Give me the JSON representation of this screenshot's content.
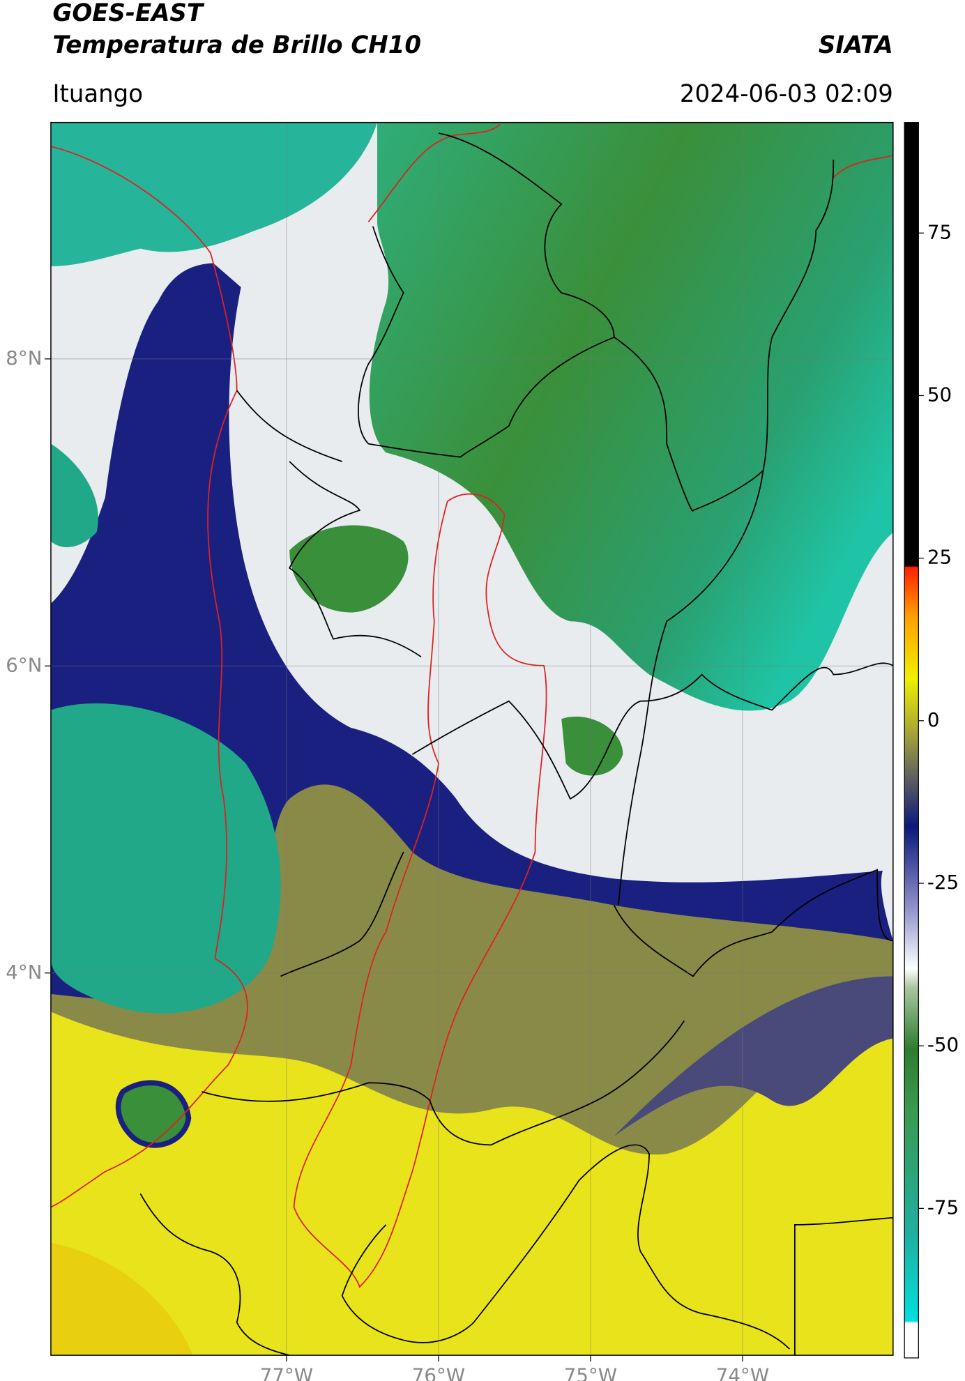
{
  "chart_data": {
    "type": "map",
    "title": "GOES-EAST",
    "subtitle": "Temperatura de Brillo CH10",
    "source": "SIATA",
    "region": "Ituango",
    "datetime": "2024-06-03 02:09",
    "xlim": [
      -78.55,
      -73.01
    ],
    "ylim": [
      1.51,
      9.54
    ],
    "xticks": [
      {
        "value": -77,
        "label": "77°W"
      },
      {
        "value": -76,
        "label": "76°W"
      },
      {
        "value": -75,
        "label": "75°W"
      },
      {
        "value": -74,
        "label": "74°W"
      }
    ],
    "yticks": [
      {
        "value": 8,
        "label": "8°N"
      },
      {
        "value": 6,
        "label": "6°N"
      },
      {
        "value": 4,
        "label": "4°N"
      }
    ],
    "grid": true,
    "colorbar": {
      "clim": [
        -98,
        92
      ],
      "ticks": [
        -75,
        -50,
        -25,
        0,
        25,
        50,
        75
      ]
    }
  }
}
